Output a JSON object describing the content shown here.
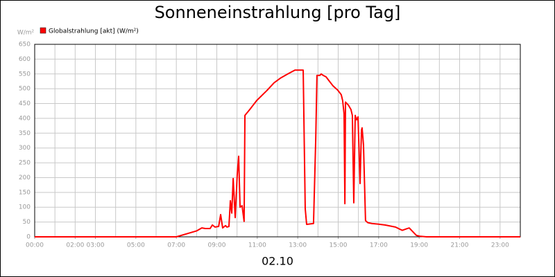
{
  "chart_data": {
    "type": "line",
    "title": "Sonneneinstrahlung [pro Tag]",
    "y_unit": "W/m²",
    "x_label": "02.10",
    "series": [
      {
        "name": "Globalstrahlung [akt] (W/m²)",
        "color": "#ff0000",
        "x": [
          0,
          7.0,
          8.0,
          8.26,
          8.43,
          8.67,
          8.78,
          8.91,
          9.09,
          9.19,
          9.29,
          9.43,
          9.5,
          9.6,
          9.67,
          9.74,
          9.81,
          9.91,
          10.01,
          10.08,
          10.15,
          10.25,
          10.35,
          10.39,
          10.63,
          10.97,
          11.49,
          11.83,
          12.17,
          12.51,
          12.86,
          13.27,
          13.37,
          13.44,
          13.78,
          13.89,
          13.95,
          14.09,
          14.16,
          14.26,
          14.4,
          14.57,
          14.74,
          14.98,
          15.15,
          15.22,
          15.29,
          15.33,
          15.36,
          15.5,
          15.63,
          15.7,
          15.77,
          15.84,
          15.91,
          15.98,
          16.08,
          16.15,
          16.18,
          16.25,
          16.35,
          16.46,
          16.66,
          16.97,
          17.31,
          17.83,
          18.07,
          18.17,
          18.41,
          18.51,
          18.72,
          18.86,
          19.03,
          19.37,
          24
        ],
        "values": [
          0,
          0,
          20,
          30,
          28,
          28,
          40,
          33,
          35,
          75,
          30,
          38,
          33,
          35,
          122,
          80,
          197,
          65,
          210,
          272,
          100,
          105,
          52,
          410,
          430,
          460,
          495,
          520,
          537,
          550,
          563,
          563,
          95,
          42,
          45,
          330,
          545,
          545,
          550,
          545,
          540,
          525,
          510,
          495,
          480,
          460,
          415,
          112,
          455,
          445,
          430,
          410,
          115,
          410,
          395,
          405,
          180,
          360,
          368,
          310,
          55,
          48,
          45,
          43,
          40,
          33,
          25,
          22,
          28,
          30,
          15,
          5,
          2,
          0,
          0
        ]
      }
    ],
    "xlim": [
      0,
      24
    ],
    "xticks": [
      {
        "value": 0,
        "label": "00:00"
      },
      {
        "value": 2,
        "label": "02:00"
      },
      {
        "value": 3,
        "label": "03:00"
      },
      {
        "value": 5,
        "label": "05:00"
      },
      {
        "value": 7,
        "label": "07:00"
      },
      {
        "value": 9,
        "label": "09:00"
      },
      {
        "value": 11,
        "label": "11:00"
      },
      {
        "value": 13,
        "label": "13:00"
      },
      {
        "value": 15,
        "label": "15:00"
      },
      {
        "value": 17,
        "label": "17:00"
      },
      {
        "value": 19,
        "label": "19:00"
      },
      {
        "value": 21,
        "label": "21:00"
      },
      {
        "value": 23,
        "label": "23:00"
      }
    ],
    "xgrid": [
      0,
      1,
      2,
      3,
      4,
      5,
      6,
      7,
      8,
      9,
      10,
      11,
      12,
      13,
      14,
      15,
      16,
      17,
      18,
      19,
      20,
      21,
      22,
      23,
      24
    ],
    "ylim": [
      0,
      650
    ],
    "yticks": [
      0,
      50,
      100,
      150,
      200,
      250,
      300,
      350,
      400,
      450,
      500,
      550,
      600,
      650
    ],
    "grid": true
  }
}
